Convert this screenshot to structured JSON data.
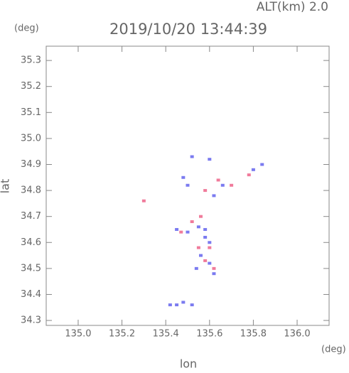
{
  "chart_data": {
    "type": "scatter",
    "title": "2019/10/20 13:44:39",
    "altitude_label": "ALT(km)  2.0",
    "y_unit": "(deg)",
    "x_unit": "(deg)",
    "xlabel": "lon",
    "ylabel": "lat",
    "xlim": [
      134.854,
      136.146
    ],
    "ylim": [
      34.281,
      35.355
    ],
    "xticks": [
      {
        "value": 135,
        "label": "135.0"
      },
      135.2,
      135.4,
      135.6,
      135.8,
      {
        "value": 136,
        "label": "136.0"
      }
    ],
    "yticks": [
      34.3,
      34.4,
      34.5,
      34.6,
      34.7,
      34.8,
      34.9,
      {
        "value": 35,
        "label": "35.0"
      },
      35.1,
      35.2,
      35.3
    ],
    "series": [
      {
        "color": "#7b7bf0",
        "x": [
          135.52,
          135.6,
          135.48,
          135.5,
          135.62,
          135.66,
          135.8,
          135.84,
          135.55,
          135.5,
          135.58,
          135.6,
          135.56,
          135.6,
          135.54,
          135.62,
          135.58,
          135.45,
          135.42,
          135.45,
          135.48,
          135.52
        ],
        "values": [
          34.93,
          34.92,
          34.85,
          34.82,
          34.78,
          34.82,
          34.88,
          34.9,
          34.66,
          34.64,
          34.62,
          34.6,
          34.55,
          34.52,
          34.5,
          34.48,
          34.65,
          34.65,
          34.36,
          34.36,
          34.37,
          34.36
        ]
      },
      {
        "color": "#f07b9b",
        "x": [
          135.3,
          135.56,
          135.52,
          135.6,
          135.55,
          135.58,
          135.62,
          135.7,
          135.78,
          135.47,
          135.58,
          135.64
        ],
        "values": [
          34.76,
          34.7,
          34.68,
          34.58,
          34.58,
          34.53,
          34.5,
          34.82,
          34.86,
          34.64,
          34.8,
          34.84
        ]
      }
    ]
  }
}
